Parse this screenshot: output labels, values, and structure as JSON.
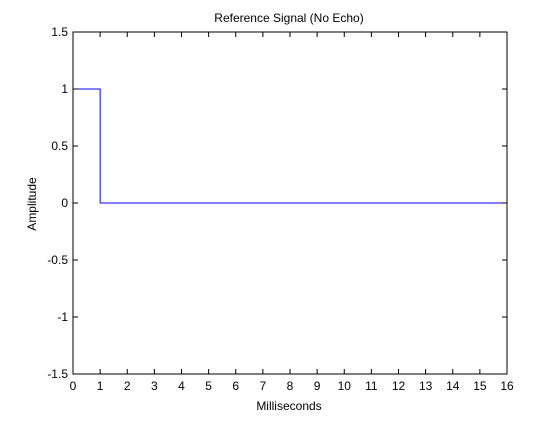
{
  "chart_data": {
    "type": "line",
    "title": "Reference Signal (No Echo)",
    "xlabel": "Milliseconds",
    "ylabel": "Amplitude",
    "xlim": [
      0,
      16
    ],
    "ylim": [
      -1.5,
      1.5
    ],
    "xticks": [
      0,
      1,
      2,
      3,
      4,
      5,
      6,
      7,
      8,
      9,
      10,
      11,
      12,
      13,
      14,
      15,
      16
    ],
    "yticks": [
      -1.5,
      -1,
      -0.5,
      0,
      0.5,
      1,
      1.5
    ],
    "grid": false,
    "series": [
      {
        "color": "#0000ff",
        "x": [
          0,
          1,
          1,
          16
        ],
        "y": [
          1,
          1,
          0,
          0
        ]
      }
    ]
  }
}
